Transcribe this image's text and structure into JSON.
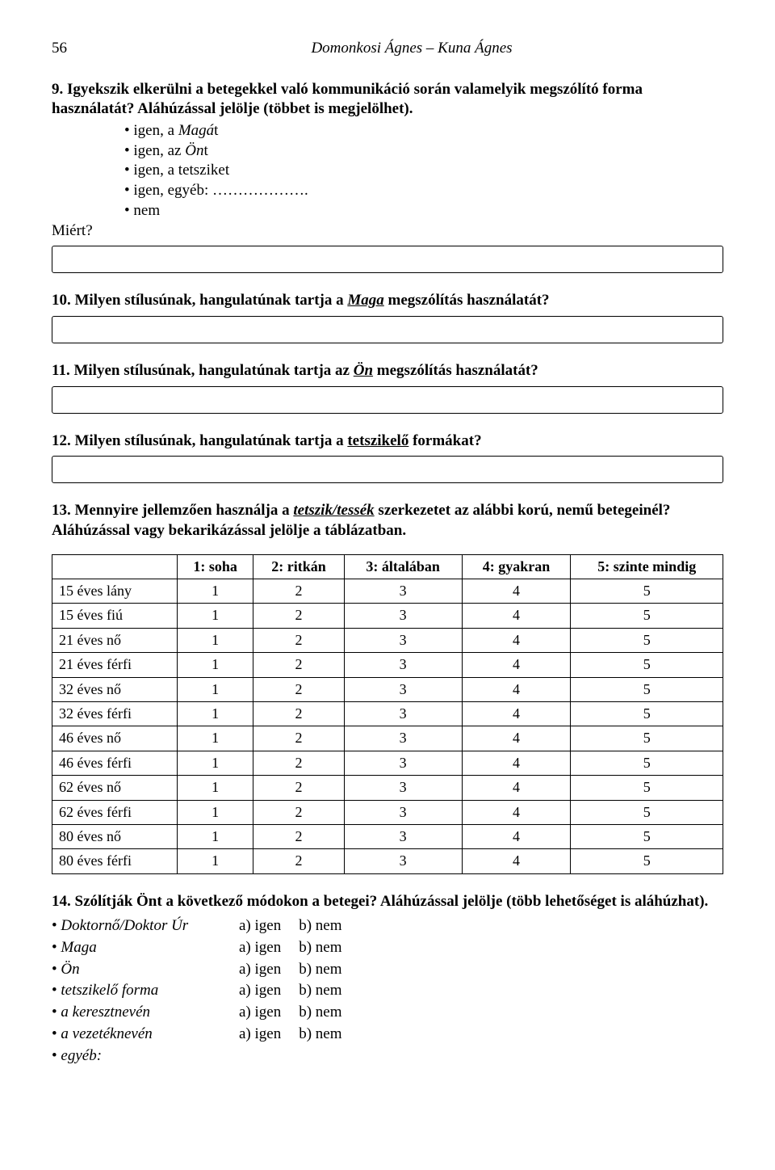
{
  "header": {
    "page_number": "56",
    "authors": "Domonkosi Ágnes – Kuna Ágnes"
  },
  "q9": {
    "text_a": "9. Igyekszik elkerülni a betegekkel való kommunikáció során valamelyik megszólító forma használatát? Aláhúzással jelölje (többet is megjelölhet).",
    "bullets": {
      "b1a": "igen, a ",
      "b1b": "Magá",
      "b1c": "t",
      "b2a": "igen, az ",
      "b2b": "Ön",
      "b2c": "t",
      "b3": "igen, a tetsziket",
      "b4": "igen, egyéb:",
      "b5": "nem"
    },
    "miert": "Miért?"
  },
  "q10": {
    "prefix": "10. Milyen stílusúnak, hangulatúnak tartja a ",
    "u": "Maga",
    "suffix": " megszólítás használatát?"
  },
  "q11": {
    "prefix": "11. Milyen stílusúnak, hangulatúnak tartja az ",
    "u": "Ön",
    "suffix": " megszólítás használatát?"
  },
  "q12": {
    "prefix": "12. Milyen stílusúnak, hangulatúnak tartja a ",
    "u": "tetszikelő",
    "suffix": " formákat?"
  },
  "q13": {
    "text_a": "13. Mennyire jellemzően használja a ",
    "u": "tetszik/tessék",
    "text_b": " szerkezetet az alábbi korú, nemű betegeinél? Aláhúzással vagy bekarikázással jelölje a táblázatban."
  },
  "table": {
    "headers": {
      "h1": "1: soha",
      "h2": "2: ritkán",
      "h3": "3: általában",
      "h4": "4: gyakran",
      "h5": "5: szinte mindig"
    },
    "rows": [
      {
        "label": "15 éves lány"
      },
      {
        "label": "15 éves fiú"
      },
      {
        "label": "21 éves nő"
      },
      {
        "label": "21 éves férfi"
      },
      {
        "label": "32 éves nő"
      },
      {
        "label": "32 éves férfi"
      },
      {
        "label": "46 éves nő"
      },
      {
        "label": "46 éves férfi"
      },
      {
        "label": "62 éves nő"
      },
      {
        "label": "62 éves férfi"
      },
      {
        "label": "80 éves nő"
      },
      {
        "label": "80 éves férfi"
      }
    ],
    "values": [
      "1",
      "2",
      "3",
      "4",
      "5"
    ]
  },
  "q14": {
    "text": "14. Szólítják Önt a következő módokon a betegei? Aláhúzással jelölje (több lehetőséget is aláhúzhat).",
    "yes": "a) igen",
    "no": "b) nem",
    "items": [
      {
        "label": "Doktornő/Doktor Úr",
        "italic": true
      },
      {
        "label": "Maga",
        "italic": true
      },
      {
        "label": "Ön",
        "italic": true
      },
      {
        "label": "tetszikelő forma",
        "italic": true
      },
      {
        "label": "a keresztnevén",
        "italic": true
      },
      {
        "label": "a vezetéknevén",
        "italic": true
      }
    ],
    "egyeb": "egyéb:"
  }
}
